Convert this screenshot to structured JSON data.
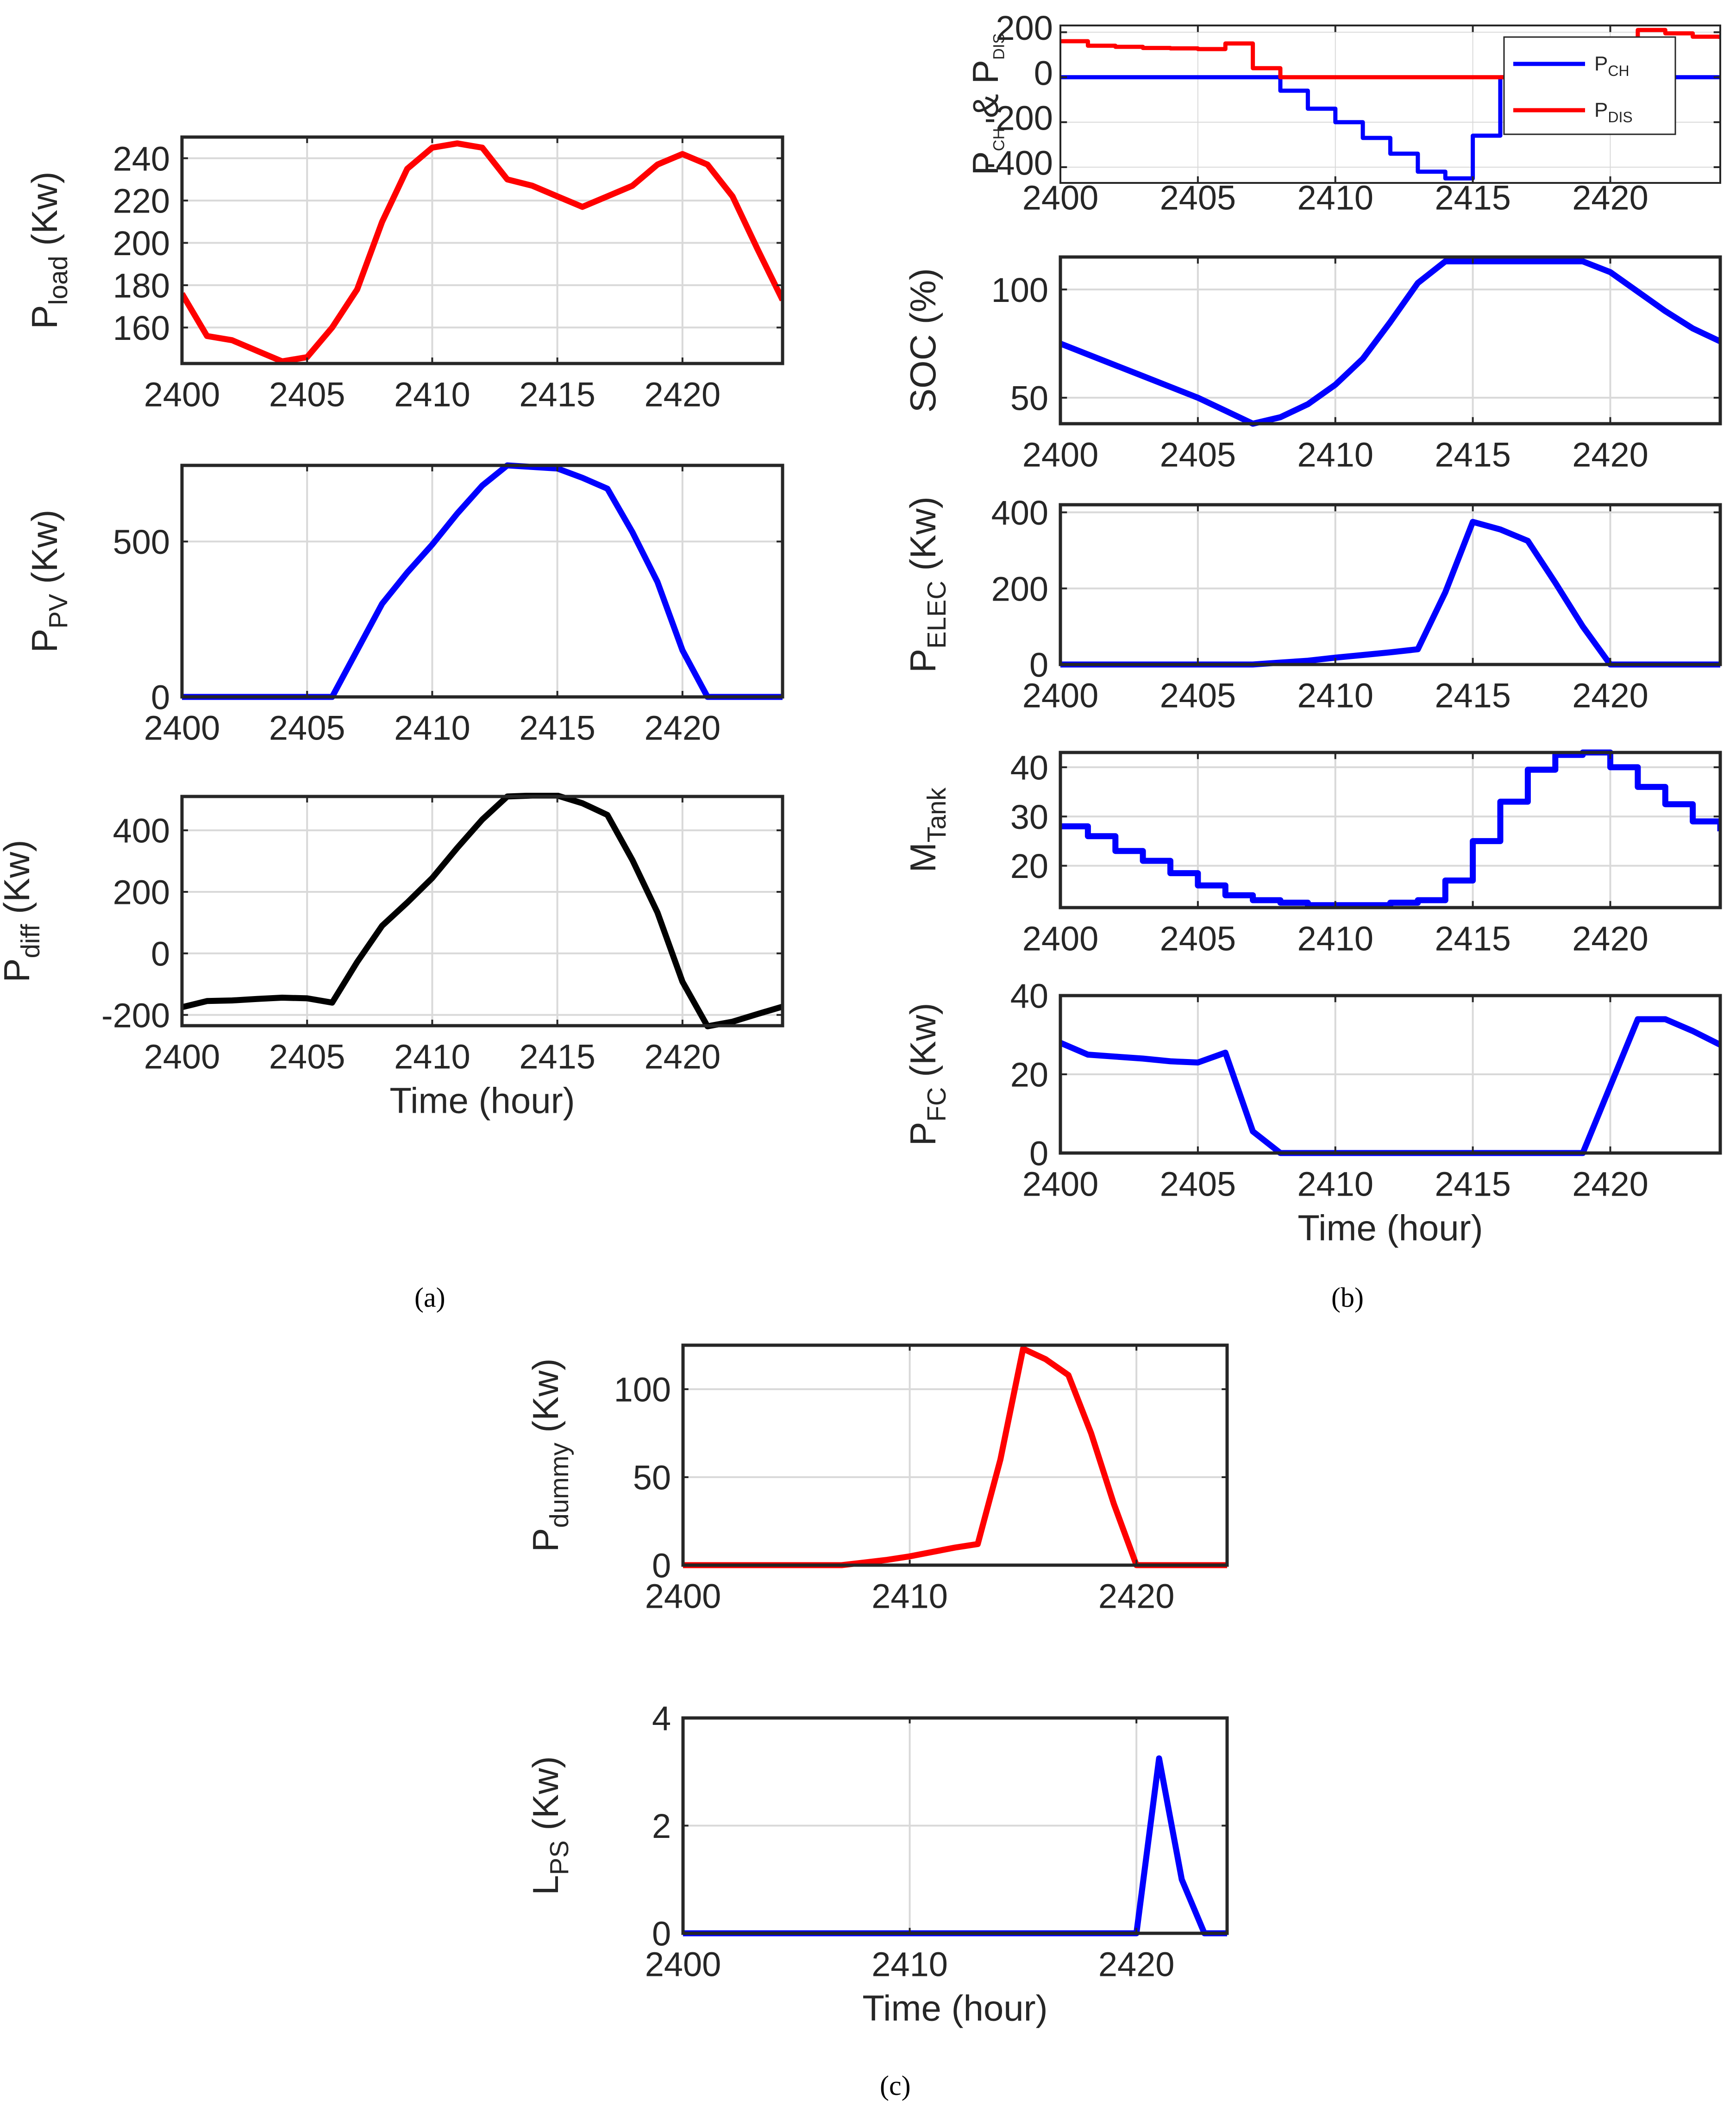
{
  "figure": {
    "caption_a": "(a)",
    "caption_b": "(b)",
    "caption_c": "(c)"
  },
  "colors": {
    "red": "#ff0000",
    "blue": "#0000ff",
    "black": "#000000",
    "grid": "#d9d9d9",
    "axis": "#262626"
  },
  "chart_data": [
    {
      "id": "load",
      "type": "line",
      "ylabel_main": "P",
      "ylabel_sub": "load",
      "ylabel_tail": " (Kw)",
      "xlabel": "",
      "xlim": [
        2400,
        2424
      ],
      "ylim": [
        143,
        250
      ],
      "xticks": [
        2400,
        2405,
        2410,
        2415,
        2420
      ],
      "yticks": [
        160,
        180,
        200,
        220,
        240
      ],
      "series": [
        {
          "name": "P_load",
          "color": "#ff0000",
          "x": [
            2400,
            2401,
            2402,
            2403,
            2404,
            2405,
            2406,
            2407,
            2408,
            2409,
            2410,
            2411,
            2412,
            2413,
            2414,
            2415,
            2416,
            2417,
            2418,
            2419,
            2420,
            2421,
            2422,
            2423,
            2424
          ],
          "y": [
            176,
            156,
            154,
            149,
            144,
            146,
            160,
            178,
            210,
            235,
            245,
            247,
            245,
            230,
            227,
            222,
            217,
            222,
            227,
            237,
            242,
            237,
            222,
            197,
            173
          ]
        }
      ]
    },
    {
      "id": "pv",
      "type": "line",
      "ylabel_main": "P",
      "ylabel_sub": "PV",
      "ylabel_tail": " (Kw)",
      "xlabel": "",
      "xlim": [
        2400,
        2424
      ],
      "ylim": [
        0,
        745
      ],
      "xticks": [
        2400,
        2405,
        2410,
        2415,
        2420
      ],
      "yticks": [
        0,
        500
      ],
      "series": [
        {
          "name": "P_PV",
          "color": "#0000ff",
          "x": [
            2400,
            2401,
            2402,
            2403,
            2404,
            2405,
            2406,
            2407,
            2408,
            2409,
            2410,
            2411,
            2412,
            2413,
            2414,
            2415,
            2416,
            2417,
            2418,
            2419,
            2420,
            2421,
            2422,
            2423,
            2424
          ],
          "y": [
            0,
            0,
            0,
            0,
            0,
            0,
            0,
            150,
            300,
            400,
            490,
            590,
            680,
            745,
            740,
            735,
            705,
            670,
            530,
            370,
            150,
            0,
            0,
            0,
            0
          ]
        }
      ]
    },
    {
      "id": "diff",
      "type": "line",
      "ylabel_main": "P",
      "ylabel_sub": "diff",
      "ylabel_tail": " (Kw)",
      "xlabel": "Time (hour)",
      "xlim": [
        2400,
        2424
      ],
      "ylim": [
        -235,
        510
      ],
      "xticks": [
        2400,
        2405,
        2410,
        2415,
        2420
      ],
      "yticks": [
        -200,
        0,
        200,
        400
      ],
      "series": [
        {
          "name": "P_diff",
          "color": "#000000",
          "x": [
            2400,
            2401,
            2402,
            2403,
            2404,
            2405,
            2406,
            2407,
            2408,
            2409,
            2410,
            2411,
            2412,
            2413,
            2414,
            2415,
            2416,
            2417,
            2418,
            2419,
            2420,
            2421,
            2422,
            2423,
            2424
          ],
          "y": [
            -175,
            -155,
            -153,
            -148,
            -144,
            -146,
            -160,
            -28,
            90,
            165,
            245,
            343,
            435,
            510,
            513,
            513,
            488,
            450,
            303,
            133,
            -92,
            -237,
            -222,
            -197,
            -173
          ]
        }
      ]
    },
    {
      "id": "chdis",
      "type": "line",
      "ylabel_main": "P",
      "ylabel_sub": "CH",
      "ylabel_tail": " & P",
      "ylabel_sub2": "DIS",
      "ylabel_tail2": "",
      "xlabel": "",
      "xlim": [
        2400,
        2424
      ],
      "ylim": [
        -470,
        230
      ],
      "xticks": [
        2400,
        2405,
        2410,
        2415,
        2420
      ],
      "yticks": [
        -400,
        -200,
        0,
        200
      ],
      "legend": {
        "position": "top-right",
        "entries": [
          {
            "main": "P",
            "sub": "CH",
            "color": "#0000ff"
          },
          {
            "main": "P",
            "sub": "DIS",
            "color": "#ff0000"
          }
        ]
      },
      "series": [
        {
          "name": "P_CH",
          "color": "#0000ff",
          "shape": "step",
          "x": [
            2400,
            2401,
            2402,
            2403,
            2404,
            2405,
            2406,
            2407,
            2408,
            2409,
            2410,
            2411,
            2412,
            2413,
            2414,
            2415,
            2416,
            2417,
            2418,
            2419,
            2420,
            2421,
            2422,
            2423,
            2424
          ],
          "y": [
            0,
            0,
            0,
            0,
            0,
            0,
            0,
            0,
            -60,
            -140,
            -200,
            -270,
            -340,
            -420,
            -450,
            -260,
            0,
            0,
            0,
            0,
            0,
            0,
            0,
            0,
            0
          ]
        },
        {
          "name": "P_DIS",
          "color": "#ff0000",
          "shape": "step",
          "x": [
            2400,
            2401,
            2402,
            2403,
            2404,
            2405,
            2406,
            2407,
            2408,
            2409,
            2410,
            2411,
            2412,
            2413,
            2414,
            2415,
            2416,
            2417,
            2418,
            2419,
            2420,
            2421,
            2422,
            2423,
            2424
          ],
          "y": [
            160,
            140,
            135,
            130,
            128,
            125,
            150,
            40,
            0,
            0,
            0,
            0,
            0,
            0,
            0,
            0,
            0,
            0,
            0,
            0,
            0,
            210,
            195,
            180,
            170
          ]
        }
      ]
    },
    {
      "id": "soc",
      "type": "line",
      "ylabel_main": "SOC (%)",
      "ylabel_sub": "",
      "ylabel_tail": "",
      "xlabel": "",
      "xlim": [
        2400,
        2424
      ],
      "ylim": [
        38,
        115
      ],
      "xticks": [
        2400,
        2405,
        2410,
        2415,
        2420
      ],
      "yticks": [
        50,
        100
      ],
      "series": [
        {
          "name": "SOC",
          "color": "#0000ff",
          "x": [
            2400,
            2401,
            2402,
            2403,
            2404,
            2405,
            2406,
            2407,
            2408,
            2409,
            2410,
            2411,
            2412,
            2413,
            2414,
            2415,
            2416,
            2417,
            2418,
            2419,
            2420,
            2421,
            2422,
            2423,
            2424
          ],
          "y": [
            75,
            70,
            65,
            60,
            55,
            50,
            44,
            38,
            41,
            47,
            56,
            68,
            85,
            103,
            113,
            113,
            113,
            113,
            113,
            113,
            108,
            99,
            90,
            82,
            76
          ]
        }
      ]
    },
    {
      "id": "elec",
      "type": "line",
      "ylabel_main": "P",
      "ylabel_sub": "ELEC",
      "ylabel_tail": " (Kw)",
      "xlabel": "",
      "xlim": [
        2400,
        2424
      ],
      "ylim": [
        0,
        420
      ],
      "xticks": [
        2400,
        2405,
        2410,
        2415,
        2420
      ],
      "yticks": [
        0,
        200,
        400
      ],
      "series": [
        {
          "name": "P_ELEC",
          "color": "#0000ff",
          "x": [
            2400,
            2401,
            2402,
            2403,
            2404,
            2405,
            2406,
            2407,
            2408,
            2409,
            2410,
            2411,
            2412,
            2413,
            2414,
            2415,
            2416,
            2417,
            2418,
            2419,
            2420,
            2421,
            2422,
            2423,
            2424
          ],
          "y": [
            0,
            0,
            0,
            0,
            0,
            0,
            0,
            0,
            5,
            10,
            18,
            25,
            32,
            40,
            190,
            375,
            355,
            325,
            215,
            100,
            0,
            0,
            0,
            0,
            0
          ]
        }
      ]
    },
    {
      "id": "tank",
      "type": "line",
      "ylabel_main": "M",
      "ylabel_sub": "Tank",
      "ylabel_tail": "",
      "xlabel": "",
      "xlim": [
        2400,
        2424
      ],
      "ylim": [
        11.5,
        43
      ],
      "xticks": [
        2400,
        2405,
        2410,
        2415,
        2420
      ],
      "yticks": [
        20,
        30,
        40
      ],
      "series": [
        {
          "name": "M_Tank",
          "color": "#0000ff",
          "shape": "step",
          "x": [
            2400,
            2401,
            2402,
            2403,
            2404,
            2405,
            2406,
            2407,
            2408,
            2409,
            2410,
            2411,
            2412,
            2413,
            2414,
            2415,
            2416,
            2417,
            2418,
            2419,
            2420,
            2421,
            2422,
            2423,
            2424
          ],
          "y": [
            28,
            26,
            23,
            21,
            18.5,
            16,
            14,
            13,
            12.5,
            12,
            12,
            12,
            12.5,
            13,
            17,
            25,
            33,
            39.5,
            42.5,
            43,
            40,
            36,
            32.5,
            29,
            27
          ]
        }
      ]
    },
    {
      "id": "fc",
      "type": "line",
      "ylabel_main": "P",
      "ylabel_sub": "FC",
      "ylabel_tail": " (Kw)",
      "xlabel": "Time (hour)",
      "xlim": [
        2400,
        2424
      ],
      "ylim": [
        0,
        40
      ],
      "xticks": [
        2400,
        2405,
        2410,
        2415,
        2420
      ],
      "yticks": [
        0,
        20,
        40
      ],
      "series": [
        {
          "name": "P_FC",
          "color": "#0000ff",
          "x": [
            2400,
            2401,
            2402,
            2403,
            2404,
            2405,
            2406,
            2407,
            2408,
            2409,
            2410,
            2411,
            2412,
            2413,
            2414,
            2415,
            2416,
            2417,
            2418,
            2419,
            2420,
            2421,
            2422,
            2423,
            2424
          ],
          "y": [
            28,
            25,
            24.5,
            24,
            23.3,
            23,
            25.5,
            5.5,
            0,
            0,
            0,
            0,
            0,
            0,
            0,
            0,
            0,
            0,
            0,
            0,
            17,
            34,
            34,
            31,
            27.5
          ]
        }
      ]
    },
    {
      "id": "dummy",
      "type": "line",
      "ylabel_main": "P",
      "ylabel_sub": "dummy",
      "ylabel_tail": " (Kw)",
      "xlabel": "",
      "xlim": [
        2400,
        2424
      ],
      "ylim": [
        0,
        125
      ],
      "xticks": [
        2400,
        2410,
        2420
      ],
      "yticks": [
        0,
        50,
        100
      ],
      "series": [
        {
          "name": "P_dummy",
          "color": "#ff0000",
          "x": [
            2400,
            2401,
            2402,
            2403,
            2404,
            2405,
            2406,
            2407,
            2408,
            2409,
            2410,
            2411,
            2412,
            2413,
            2414,
            2415,
            2416,
            2417,
            2418,
            2419,
            2420,
            2421,
            2422,
            2423,
            2424
          ],
          "y": [
            0,
            0,
            0,
            0,
            0,
            0,
            0,
            0,
            1.5,
            3,
            5,
            7.5,
            10,
            12,
            60,
            123,
            117,
            108,
            75,
            35,
            0,
            0,
            0,
            0,
            0
          ]
        }
      ]
    },
    {
      "id": "lps",
      "type": "line",
      "ylabel_main": "L",
      "ylabel_sub": "PS",
      "ylabel_tail": " (Kw)",
      "xlabel": "Time (hour)",
      "xlim": [
        2400,
        2424
      ],
      "ylim": [
        0,
        4
      ],
      "xticks": [
        2400,
        2410,
        2420
      ],
      "yticks": [
        0,
        2,
        4
      ],
      "series": [
        {
          "name": "L_PS",
          "color": "#0000ff",
          "x": [
            2400,
            2401,
            2402,
            2403,
            2404,
            2405,
            2406,
            2407,
            2408,
            2409,
            2410,
            2411,
            2412,
            2413,
            2414,
            2415,
            2416,
            2417,
            2418,
            2419,
            2420,
            2421,
            2422,
            2423,
            2424
          ],
          "y": [
            0,
            0,
            0,
            0,
            0,
            0,
            0,
            0,
            0,
            0,
            0,
            0,
            0,
            0,
            0,
            0,
            0,
            0,
            0,
            0,
            0,
            3.25,
            1,
            0,
            0
          ]
        }
      ]
    }
  ]
}
